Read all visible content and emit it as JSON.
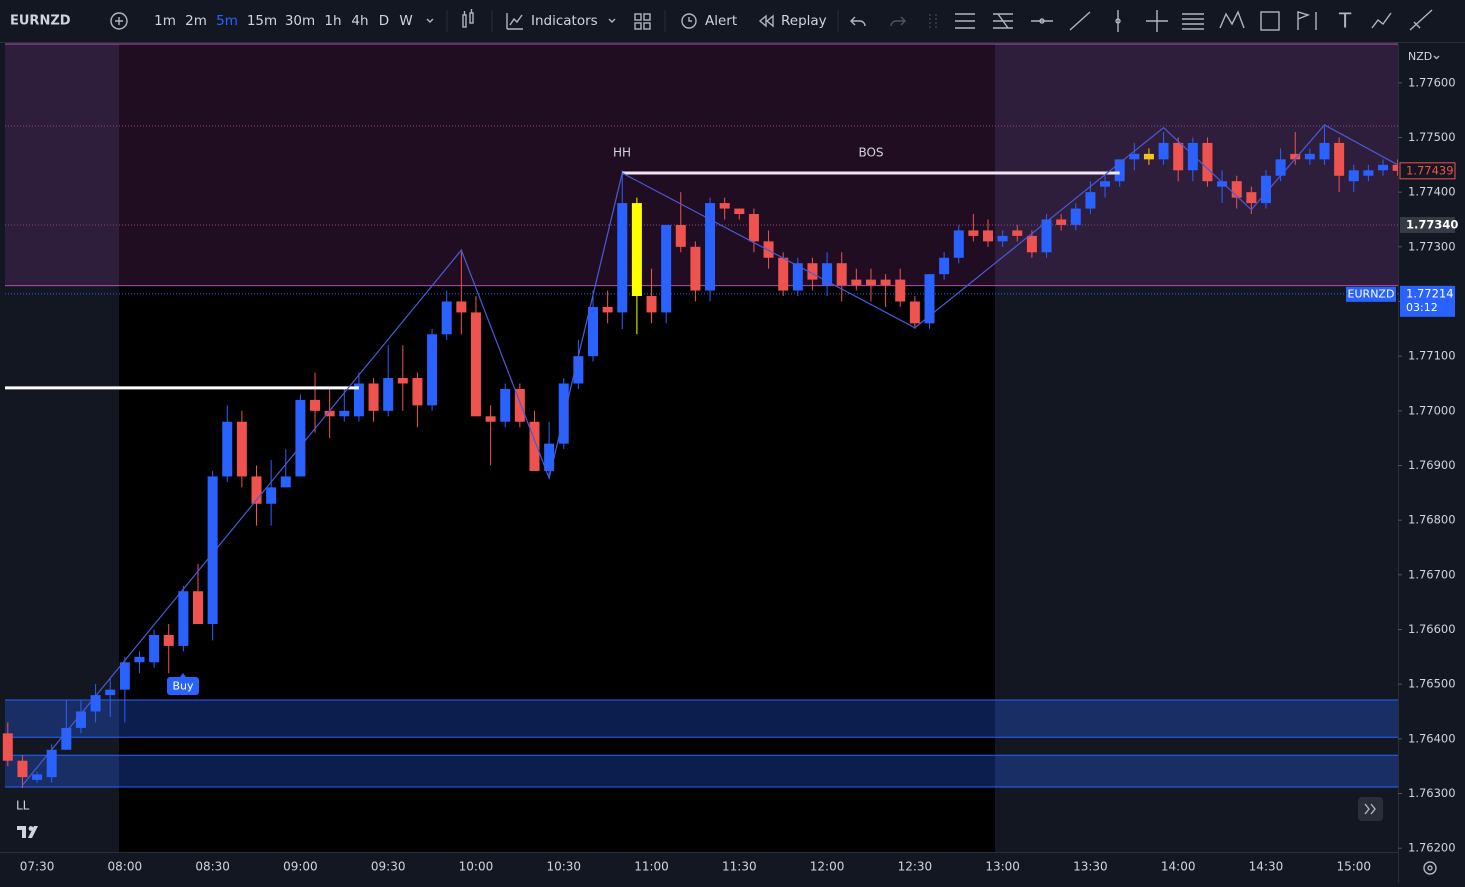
{
  "toolbar": {
    "symbol": "EURNZD",
    "intervals": [
      "1m",
      "2m",
      "5m",
      "15m",
      "30m",
      "1h",
      "4h",
      "D",
      "W"
    ],
    "selected": 2,
    "buttons": [
      "Indicators",
      "Alert",
      "Replay"
    ]
  },
  "chart_data": {
    "type": "candlestick",
    "currency": "NZD",
    "categories": [
      null,
      null,
      "07:30",
      null,
      null,
      null,
      null,
      null,
      "08:00",
      null,
      null,
      null,
      null,
      null,
      "08:30",
      null,
      null,
      null,
      null,
      null,
      "09:00",
      null,
      null,
      null,
      null,
      null,
      "09:30",
      null,
      null,
      null,
      null,
      null,
      "10:00",
      null,
      null,
      null,
      null,
      null,
      "10:30",
      null,
      null,
      null,
      null,
      null,
      "11:00",
      null,
      null,
      null,
      null,
      null,
      "11:30",
      null,
      null,
      null,
      null,
      null,
      "12:00",
      null,
      null,
      null,
      null,
      null,
      "12:30",
      null,
      null,
      null,
      null,
      null,
      "13:00",
      null,
      null,
      null,
      null,
      null,
      "13:30",
      null,
      null,
      null,
      null,
      null,
      "14:00",
      null,
      null,
      null,
      null,
      null,
      "14:30",
      null,
      null,
      null,
      null,
      null,
      "15:00",
      null,
      null,
      null
    ],
    "open": [
      1.7641,
      1.7636,
      1.76325,
      1.7633,
      1.7638,
      1.7642,
      1.7645,
      1.7648,
      1.7649,
      1.7654,
      1.7654,
      1.7659,
      1.7657,
      1.7667,
      1.7661,
      1.7688,
      1.7698,
      1.7688,
      1.7683,
      1.7686,
      1.7688,
      1.7702,
      1.77,
      1.7699,
      1.7699,
      1.7705,
      1.77,
      1.7706,
      1.7706,
      1.7701,
      1.7714,
      1.772,
      1.7718,
      1.7699,
      1.7698,
      1.7704,
      1.7698,
      1.7689,
      1.7694,
      1.7705,
      1.771,
      1.7719,
      1.7718,
      1.7738,
      1.7721,
      1.7718,
      1.7734,
      1.773,
      1.7722,
      1.7738,
      1.7737,
      1.7736,
      1.7731,
      1.7728,
      1.7722,
      1.7727,
      1.7723,
      1.7727,
      1.7724,
      1.7724,
      1.7724,
      1.7724,
      1.772,
      1.7716,
      1.7725,
      1.7728,
      1.7733,
      1.7733,
      1.7731,
      1.7733,
      1.7732,
      1.7729,
      1.7735,
      1.7734,
      1.7737,
      1.7741,
      1.7742,
      1.7746,
      1.7747,
      1.7746,
      1.7749,
      1.7744,
      1.7749,
      1.7741,
      1.7742,
      1.774,
      1.7738,
      1.7743,
      1.7747,
      1.7746,
      1.7746,
      1.7749,
      1.7742,
      1.7743,
      1.7744,
      1.7745
    ],
    "high": [
      1.7643,
      1.7637,
      1.7634,
      1.7639,
      1.7647,
      1.7647,
      1.765,
      1.7651,
      1.7655,
      1.7656,
      1.766,
      1.7661,
      1.7668,
      1.7672,
      1.7689,
      1.7701,
      1.77,
      1.769,
      1.7691,
      1.7693,
      1.7703,
      1.7707,
      1.7704,
      1.7704,
      1.7707,
      1.7706,
      1.7712,
      1.7712,
      1.7707,
      1.7715,
      1.7722,
      1.7729,
      1.7721,
      1.7701,
      1.7705,
      1.7705,
      1.77,
      1.7698,
      1.7706,
      1.7713,
      1.7722,
      1.7722,
      1.7744,
      1.7739,
      1.7726,
      1.7734,
      1.774,
      1.7731,
      1.7739,
      1.7739,
      1.7737,
      1.7737,
      1.7733,
      1.7729,
      1.7728,
      1.7728,
      1.7729,
      1.7729,
      1.7726,
      1.7726,
      1.7725,
      1.7726,
      1.7721,
      1.7725,
      1.7729,
      1.7734,
      1.7736,
      1.7735,
      1.7733,
      1.7734,
      1.7733,
      1.7736,
      1.7736,
      1.7738,
      1.7742,
      1.7743,
      1.7746,
      1.7749,
      1.7748,
      1.7751,
      1.775,
      1.775,
      1.775,
      1.7744,
      1.7743,
      1.7741,
      1.7744,
      1.7748,
      1.7751,
      1.7748,
      1.7752,
      1.775,
      1.7745,
      1.7745,
      1.7746,
      1.7746
    ],
    "low": [
      1.7635,
      1.7631,
      1.7632,
      1.7632,
      1.7638,
      1.7641,
      1.7643,
      1.7644,
      1.7643,
      1.7652,
      1.7653,
      1.7652,
      1.7656,
      1.7661,
      1.7658,
      1.7687,
      1.7686,
      1.7679,
      1.7679,
      1.7686,
      1.7688,
      1.7696,
      1.7695,
      1.7698,
      1.7698,
      1.7698,
      1.7699,
      1.77,
      1.7697,
      1.77,
      1.7713,
      1.7714,
      1.7699,
      1.769,
      1.7697,
      1.7697,
      1.7689,
      1.7688,
      1.7693,
      1.7704,
      1.7709,
      1.7716,
      1.7715,
      1.7714,
      1.7716,
      1.7716,
      1.7729,
      1.772,
      1.772,
      1.7735,
      1.7735,
      1.7729,
      1.7726,
      1.7721,
      1.7721,
      1.7722,
      1.7721,
      1.772,
      1.7722,
      1.772,
      1.7719,
      1.7719,
      1.7715,
      1.7715,
      1.7724,
      1.7727,
      1.7731,
      1.773,
      1.773,
      1.7731,
      1.7728,
      1.7728,
      1.7733,
      1.7733,
      1.7736,
      1.7739,
      1.7741,
      1.7744,
      1.7745,
      1.7745,
      1.7742,
      1.7742,
      1.7741,
      1.7738,
      1.7737,
      1.7736,
      1.7737,
      1.7742,
      1.7745,
      1.7745,
      1.7745,
      1.774,
      1.774,
      1.7742,
      1.7743,
      1.7743
    ],
    "close": [
      1.7636,
      1.7633,
      1.76335,
      1.7638,
      1.7642,
      1.7645,
      1.7648,
      1.7649,
      1.7654,
      1.7655,
      1.7659,
      1.7657,
      1.7667,
      1.7661,
      1.7688,
      1.7698,
      1.7688,
      1.7683,
      1.7686,
      1.7688,
      1.7702,
      1.77,
      1.7699,
      1.77,
      1.7705,
      1.77,
      1.7706,
      1.7705,
      1.7701,
      1.7714,
      1.772,
      1.7718,
      1.7699,
      1.7698,
      1.7704,
      1.7698,
      1.7689,
      1.7694,
      1.7705,
      1.771,
      1.7719,
      1.7718,
      1.7738,
      1.7721,
      1.7718,
      1.7734,
      1.773,
      1.7722,
      1.7738,
      1.7737,
      1.7736,
      1.7731,
      1.7728,
      1.7722,
      1.7727,
      1.7724,
      1.7727,
      1.7723,
      1.7723,
      1.7723,
      1.7723,
      1.772,
      1.7716,
      1.7725,
      1.7728,
      1.7733,
      1.7732,
      1.7731,
      1.7732,
      1.7732,
      1.7729,
      1.7735,
      1.7734,
      1.7737,
      1.774,
      1.7742,
      1.7746,
      1.7747,
      1.7746,
      1.7749,
      1.7744,
      1.7749,
      1.7742,
      1.7742,
      1.7739,
      1.7738,
      1.7743,
      1.7746,
      1.7746,
      1.7747,
      1.7749,
      1.7743,
      1.7744,
      1.7744,
      1.7745,
      1.77439
    ],
    "up_color": "#2962ff",
    "down_color": "#ef5350",
    "highlight": [
      {
        "index": 43,
        "color": "#ffff00"
      },
      {
        "index": 78,
        "color": "#f5c518"
      }
    ],
    "ylim": [
      1.76193,
      1.77671
    ],
    "yticks": [
      {
        "value": 1.776,
        "label": "1.77600"
      },
      {
        "value": 1.775,
        "label": "1.77500"
      },
      {
        "value": 1.774,
        "label": "1.77400"
      },
      {
        "value": 1.773,
        "label": "1.77300"
      },
      {
        "value": 1.772,
        "label": "1.77200"
      },
      {
        "value": 1.771,
        "label": "1.77100"
      },
      {
        "value": 1.77,
        "label": "1.77000"
      },
      {
        "value": 1.769,
        "label": "1.76900"
      },
      {
        "value": 1.768,
        "label": "1.76800"
      },
      {
        "value": 1.767,
        "label": "1.76700"
      },
      {
        "value": 1.766,
        "label": "1.76600"
      },
      {
        "value": 1.765,
        "label": "1.76500"
      },
      {
        "value": 1.764,
        "label": "1.76400"
      },
      {
        "value": 1.763,
        "label": "1.76300"
      },
      {
        "value": 1.762,
        "label": "1.76200"
      }
    ],
    "grid": false,
    "zones": [
      {
        "from": 1.77229,
        "to": 1.77671,
        "color": "rgba(150,60,150,0.22)",
        "border": "#b04fb0"
      },
      {
        "from": 1.76403,
        "to": 1.76471,
        "color": "rgba(41,98,255,0.3)",
        "border": "#2962ff"
      },
      {
        "from": 1.76312,
        "to": 1.7637,
        "color": "rgba(41,98,255,0.3)",
        "border": "#2962ff"
      }
    ],
    "levels": [
      {
        "value": 1.77042,
        "from": 0,
        "to": 24,
        "color": "#ffffff"
      },
      {
        "value": 1.77435,
        "from": 42,
        "to": 76,
        "color": "#f3e5f5"
      }
    ],
    "zigzag": {
      "indices": [
        1,
        31,
        37,
        42,
        62,
        79,
        85,
        90,
        95
      ],
      "values": [
        1.76315,
        1.77294,
        1.76877,
        1.77435,
        1.77152,
        1.77518,
        1.77368,
        1.77523,
        1.7745
      ],
      "color": "#4a5ad8"
    },
    "price_line": {
      "value": 1.7734,
      "label": "1.77340"
    },
    "last_price": {
      "name": "EURNZD",
      "value": 1.77214,
      "countdown": "03:12"
    },
    "annotations": {
      "hh": "HH",
      "bos": "BOS",
      "ll": "LL",
      "buy": "Buy"
    }
  }
}
